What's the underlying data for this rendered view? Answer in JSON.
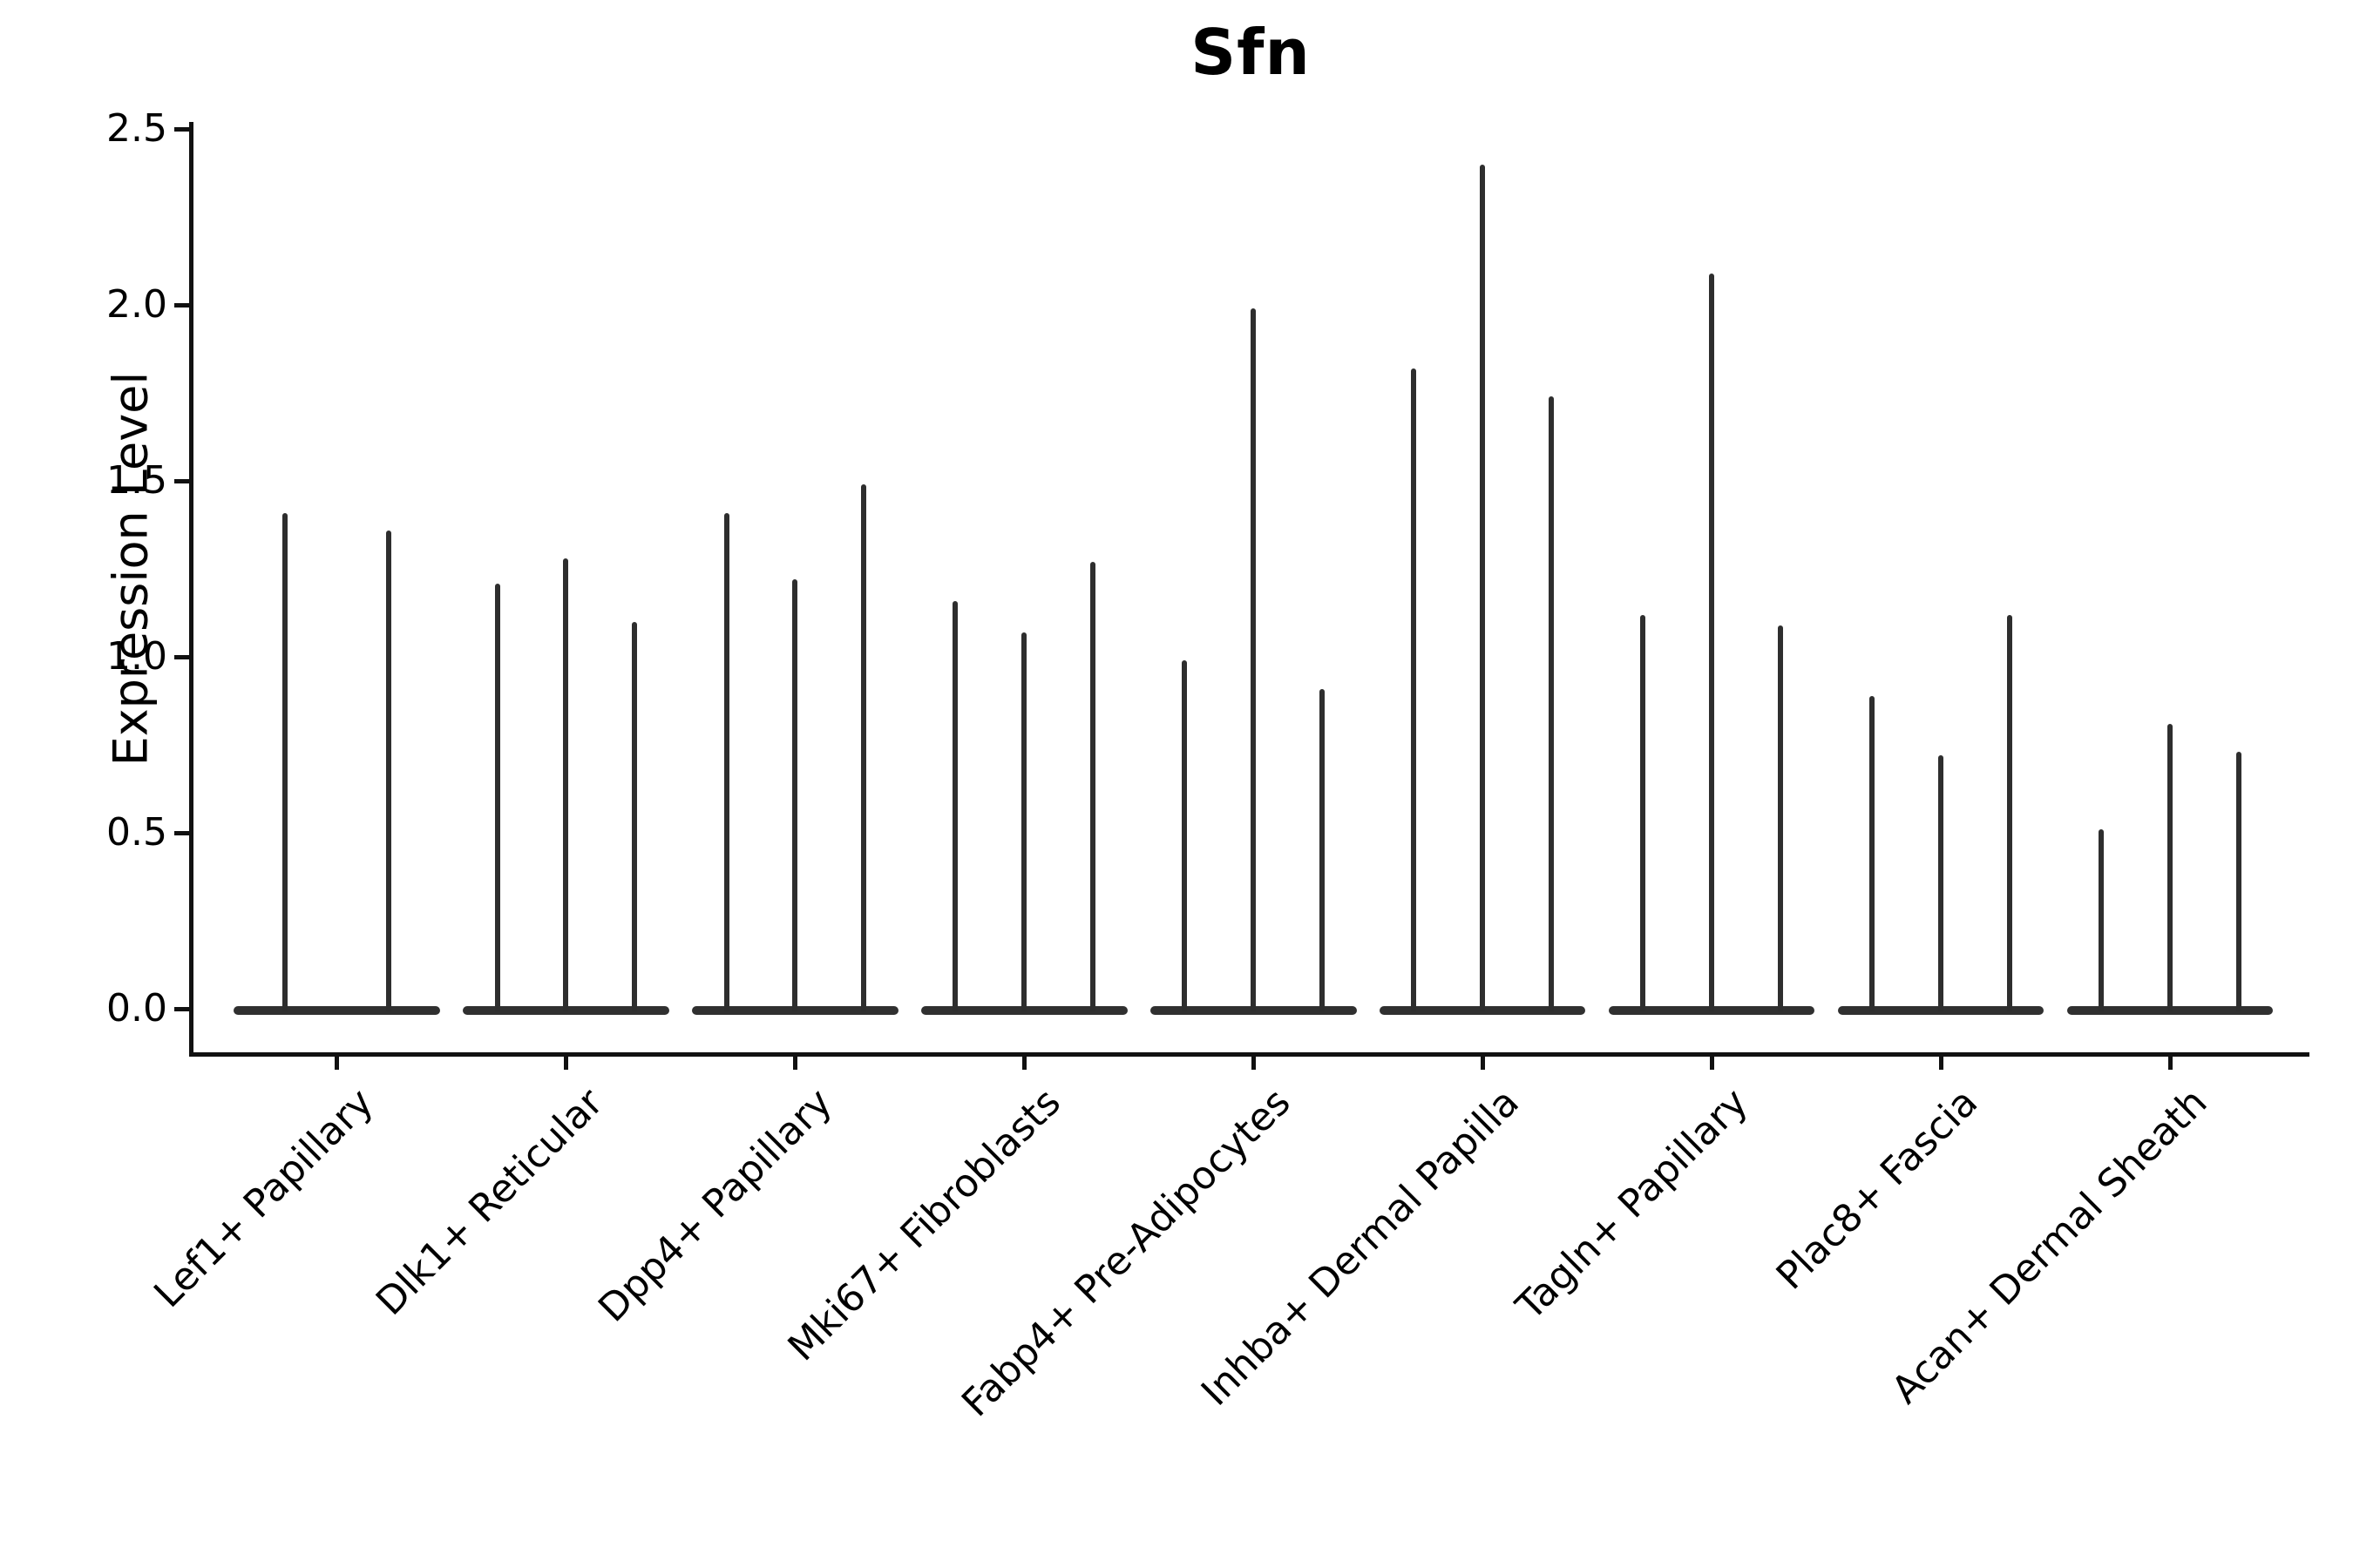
{
  "chart_data": {
    "type": "violin",
    "title": "Sfn",
    "xlabel": "",
    "ylabel": "Expression Level",
    "ylim": [
      0,
      2.5
    ],
    "yticks": [
      0.0,
      0.5,
      1.0,
      1.5,
      2.0,
      2.5
    ],
    "grid": false,
    "legend": "none",
    "violin_color": "#2e2e2e",
    "shape_note": "Each violin collapses to a flat bar at expression 0 with a thin vertical spike reaching its maximum expression value",
    "groups": [
      {
        "category": "Lef1+ Papillary",
        "violin_max_values": [
          1.41,
          1.36
        ]
      },
      {
        "category": "Dlk1+ Reticular",
        "violin_max_values": [
          1.21,
          1.28,
          1.1
        ]
      },
      {
        "category": "Dpp4+ Papillary",
        "violin_max_values": [
          1.41,
          1.22,
          1.49
        ]
      },
      {
        "category": "Mki67+ Fibroblasts",
        "violin_max_values": [
          1.16,
          1.07,
          1.27
        ]
      },
      {
        "category": "Fabp4+ Pre-Adipocytes",
        "violin_max_values": [
          0.99,
          1.99,
          0.91
        ]
      },
      {
        "category": "Inhba+ Dermal Papilla",
        "violin_max_values": [
          1.82,
          2.4,
          1.74
        ]
      },
      {
        "category": "Tagln+ Papillary",
        "violin_max_values": [
          1.12,
          2.09,
          1.09
        ]
      },
      {
        "category": "Plac8+ Fascia",
        "violin_max_values": [
          0.89,
          0.72,
          1.12
        ]
      },
      {
        "category": "Acan+ Dermal Sheath",
        "violin_max_values": [
          0.51,
          0.81,
          0.73
        ]
      }
    ]
  }
}
